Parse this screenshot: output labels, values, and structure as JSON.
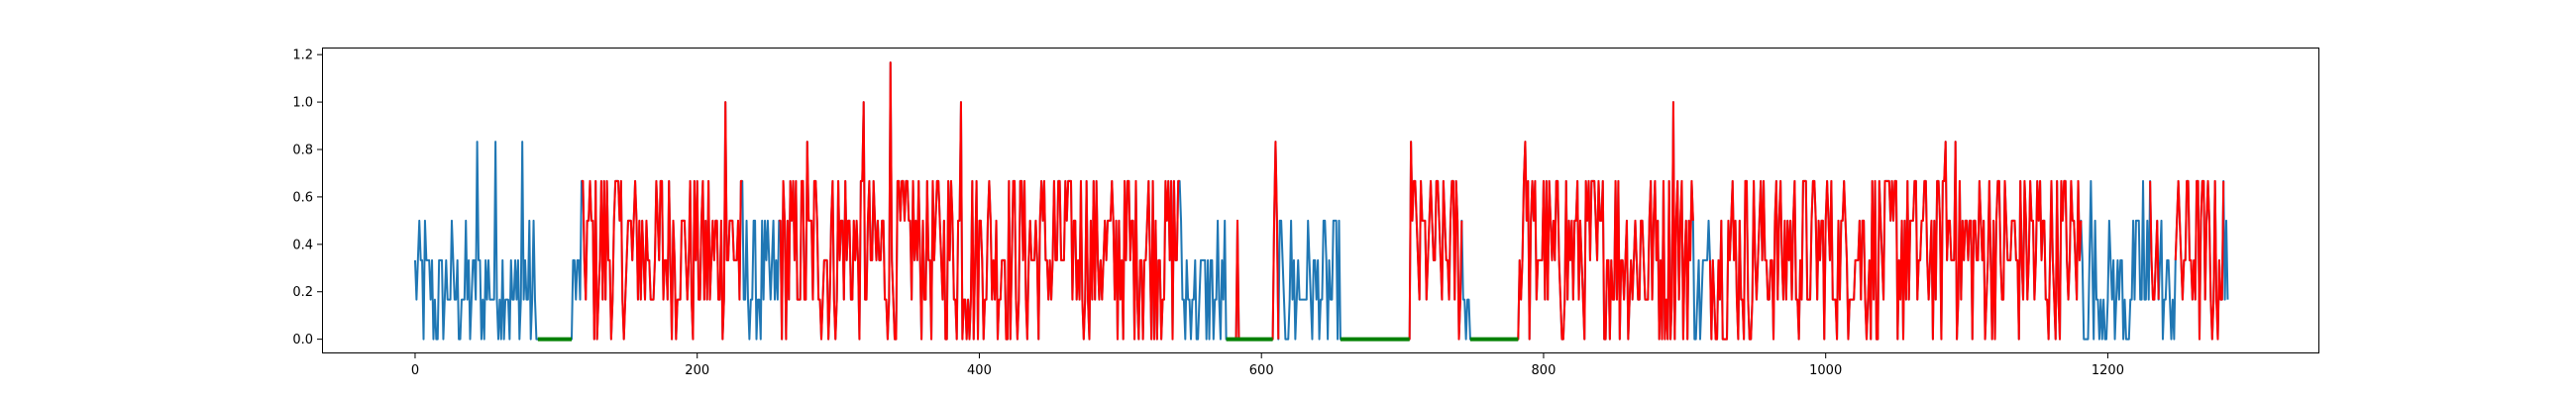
{
  "chart_data": {
    "type": "line",
    "title": "",
    "xlabel": "",
    "ylabel": "",
    "xlim": [
      -66,
      1350
    ],
    "ylim": [
      -0.06,
      1.23
    ],
    "grid": false,
    "legend": "none",
    "x_ticks": [
      0,
      200,
      400,
      600,
      800,
      1000,
      1200
    ],
    "y_ticks": [
      0.0,
      0.2,
      0.4,
      0.6,
      0.8,
      1.0,
      1.2
    ],
    "x_tick_labels": [
      "0",
      "200",
      "400",
      "600",
      "800",
      "1000",
      "1200"
    ],
    "y_tick_labels": [
      "0.0",
      "0.2",
      "0.4",
      "0.6",
      "0.8",
      "1.0",
      "1.2"
    ],
    "n_points": 1286,
    "series": [
      {
        "color": "#1f77b4",
        "role": "base signal (visible where not overlaid)",
        "x_range": [
          0,
          1285
        ],
        "value_levels": [
          0,
          0.167,
          0.333,
          0.5,
          0.667,
          0.833
        ],
        "notable_points": [
          {
            "x": 44,
            "y": 0.833
          },
          {
            "x": 57,
            "y": 0.833
          },
          {
            "x": 76,
            "y": 0.833
          },
          {
            "x": 541,
            "y": 0.667
          },
          {
            "x": 583,
            "y": 0.5
          },
          {
            "x": 1188,
            "y": 0.667
          },
          {
            "x": 1225,
            "y": 0.667
          },
          {
            "x": 1270,
            "y": 0.5
          },
          {
            "x": 1284,
            "y": 0.5
          }
        ]
      },
      {
        "color": "#ff0000",
        "role": "highlighted segments",
        "segments": [
          [
            118,
            232
          ],
          [
            258,
            542
          ],
          [
            580,
            612
          ],
          [
            702,
            742
          ],
          [
            779,
            906
          ],
          [
            918,
            1181
          ],
          [
            1230,
            1236
          ],
          [
            1248,
            1282
          ]
        ],
        "value_levels": [
          0,
          0.167,
          0.333,
          0.5,
          0.667,
          0.833,
          1.0,
          1.167
        ],
        "notable_points": [
          {
            "x": 220,
            "y": 1.0
          },
          {
            "x": 278,
            "y": 0.833
          },
          {
            "x": 318,
            "y": 1.0
          },
          {
            "x": 337,
            "y": 1.167
          },
          {
            "x": 387,
            "y": 1.0
          },
          {
            "x": 610,
            "y": 0.833
          },
          {
            "x": 706,
            "y": 0.833
          },
          {
            "x": 787,
            "y": 0.833
          },
          {
            "x": 892,
            "y": 1.0
          },
          {
            "x": 1085,
            "y": 0.833
          },
          {
            "x": 1092,
            "y": 0.833
          }
        ]
      },
      {
        "color": "#008000",
        "role": "zero-valued segments",
        "segments": [
          [
            87,
            111
          ],
          [
            575,
            608
          ],
          [
            656,
            705
          ],
          [
            748,
            782
          ]
        ],
        "value": 0
      }
    ]
  }
}
